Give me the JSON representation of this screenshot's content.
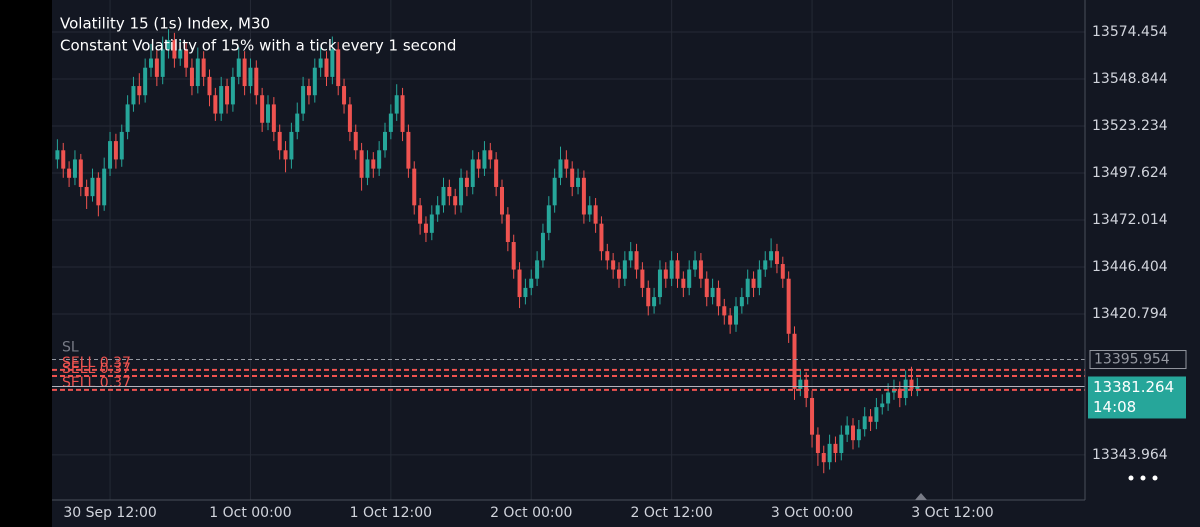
{
  "chart_data": {
    "type": "candlestick",
    "title": "Volatility 15 (1s) Index, M30",
    "subtitle": "Constant Volatility of 15% with a tick every 1 second",
    "categories": [
      null,
      null,
      null,
      null,
      null,
      null,
      null,
      null,
      null,
      "30 Sep 12:00",
      null,
      null,
      null,
      null,
      null,
      null,
      null,
      null,
      null,
      null,
      null,
      null,
      null,
      null,
      null,
      null,
      null,
      null,
      null,
      null,
      null,
      null,
      null,
      "1 Oct 00:00",
      null,
      null,
      null,
      null,
      null,
      null,
      null,
      null,
      null,
      null,
      null,
      null,
      null,
      null,
      null,
      null,
      null,
      null,
      null,
      null,
      null,
      null,
      null,
      "1 Oct 12:00",
      null,
      null,
      null,
      null,
      null,
      null,
      null,
      null,
      null,
      null,
      null,
      null,
      null,
      null,
      null,
      null,
      null,
      null,
      null,
      null,
      null,
      null,
      null,
      "2 Oct 00:00",
      null,
      null,
      null,
      null,
      null,
      null,
      null,
      null,
      null,
      null,
      null,
      null,
      null,
      null,
      null,
      null,
      null,
      null,
      null,
      null,
      null,
      null,
      null,
      "2 Oct 12:00",
      null,
      null,
      null,
      null,
      null,
      null,
      null,
      null,
      null,
      null,
      null,
      null,
      null,
      null,
      null,
      null,
      null,
      null,
      null,
      null,
      null,
      null,
      null,
      "3 Oct 00:00",
      null,
      null,
      null,
      null,
      null,
      null,
      null,
      null,
      null,
      null,
      null,
      null,
      null,
      null,
      null,
      null,
      null,
      null,
      null,
      null,
      null,
      null,
      null,
      "3 Oct 12:00"
    ],
    "open": [
      13505,
      13510,
      13500,
      13495,
      13505,
      13490,
      13485,
      13495,
      13480,
      13500,
      13515,
      13505,
      13520,
      13535,
      13545,
      13540,
      13555,
      13560,
      13550,
      13565,
      13570,
      13560,
      13565,
      13555,
      13545,
      13560,
      13550,
      13540,
      13530,
      13545,
      13535,
      13550,
      13560,
      13545,
      13555,
      13540,
      13525,
      13535,
      13520,
      13510,
      13505,
      13520,
      13530,
      13545,
      13540,
      13555,
      13560,
      13550,
      13565,
      13545,
      13535,
      13520,
      13510,
      13495,
      13505,
      13500,
      13510,
      13520,
      13530,
      13540,
      13520,
      13500,
      13480,
      13470,
      13465,
      13475,
      13480,
      13490,
      13485,
      13480,
      13495,
      13490,
      13505,
      13500,
      13510,
      13505,
      13490,
      13475,
      13460,
      13445,
      13430,
      13435,
      13440,
      13450,
      13465,
      13480,
      13495,
      13505,
      13500,
      13490,
      13495,
      13475,
      13480,
      13470,
      13455,
      13450,
      13445,
      13440,
      13450,
      13455,
      13445,
      13435,
      13425,
      13430,
      13445,
      13440,
      13450,
      13440,
      13435,
      13445,
      13450,
      13440,
      13430,
      13435,
      13425,
      13420,
      13415,
      13425,
      13430,
      13440,
      13435,
      13445,
      13450,
      13455,
      13448,
      13440,
      13410,
      13380,
      13385,
      13375,
      13355,
      13345,
      13340,
      13350,
      13345,
      13355,
      13360,
      13352,
      13358,
      13365,
      13362,
      13370,
      13372,
      13378,
      13380,
      13375,
      13385,
      13380,
      null,
      null,
      null,
      null,
      null,
      null
    ],
    "high": [
      13516,
      13514,
      13504,
      13510,
      13508,
      13494,
      13500,
      13498,
      13506,
      13520,
      13519,
      13524,
      13540,
      13550,
      13552,
      13560,
      13568,
      13565,
      13572,
      13576,
      13574,
      13570,
      13569,
      13560,
      13566,
      13564,
      13554,
      13544,
      13550,
      13549,
      13555,
      13566,
      13564,
      13560,
      13559,
      13544,
      13540,
      13539,
      13524,
      13515,
      13525,
      13536,
      13550,
      13549,
      13560,
      13566,
      13564,
      13572,
      13569,
      13549,
      13539,
      13524,
      13514,
      13510,
      13509,
      13515,
      13525,
      13535,
      13546,
      13544,
      13524,
      13504,
      13484,
      13474,
      13480,
      13485,
      13495,
      13494,
      13489,
      13500,
      13499,
      13510,
      13509,
      13515,
      13514,
      13509,
      13494,
      13479,
      13464,
      13449,
      13440,
      13445,
      13455,
      13470,
      13485,
      13500,
      13512,
      13510,
      13504,
      13500,
      13499,
      13485,
      13484,
      13474,
      13459,
      13454,
      13449,
      13455,
      13460,
      13459,
      13449,
      13439,
      13435,
      13450,
      13449,
      13455,
      13454,
      13444,
      13450,
      13455,
      13454,
      13444,
      13440,
      13439,
      13429,
      13424,
      13430,
      13435,
      13445,
      13444,
      13450,
      13455,
      13462,
      13459,
      13452,
      13444,
      13414,
      13390,
      13389,
      13379,
      13359,
      13349,
      13355,
      13354,
      13360,
      13365,
      13364,
      13363,
      13370,
      13369,
      13375,
      13377,
      13383,
      13385,
      13384,
      13390,
      13392,
      13386,
      null,
      null,
      null,
      null,
      null,
      null
    ],
    "low": [
      13500,
      13495,
      13490,
      13491,
      13485,
      13478,
      13482,
      13474,
      13477,
      13496,
      13500,
      13501,
      13516,
      13531,
      13535,
      13536,
      13550,
      13545,
      13546,
      13560,
      13555,
      13556,
      13550,
      13540,
      13541,
      13545,
      13534,
      13526,
      13526,
      13530,
      13531,
      13546,
      13540,
      13541,
      13535,
      13520,
      13521,
      13515,
      13505,
      13498,
      13500,
      13516,
      13526,
      13535,
      13536,
      13550,
      13545,
      13546,
      13540,
      13530,
      13515,
      13505,
      13488,
      13491,
      13495,
      13496,
      13506,
      13516,
      13526,
      13515,
      13495,
      13475,
      13464,
      13460,
      13461,
      13471,
      13476,
      13480,
      13475,
      13476,
      13485,
      13486,
      13495,
      13496,
      13500,
      13485,
      13470,
      13455,
      13440,
      13424,
      13426,
      13431,
      13436,
      13446,
      13461,
      13476,
      13491,
      13495,
      13485,
      13486,
      13470,
      13471,
      13465,
      13450,
      13445,
      13440,
      13435,
      13436,
      13446,
      13440,
      13430,
      13420,
      13421,
      13426,
      13435,
      13436,
      13435,
      13430,
      13431,
      13441,
      13435,
      13425,
      13426,
      13420,
      13415,
      13410,
      13411,
      13421,
      13426,
      13430,
      13431,
      13441,
      13446,
      13443,
      13435,
      13405,
      13374,
      13376,
      13370,
      13348,
      13338,
      13334,
      13336,
      13340,
      13341,
      13351,
      13347,
      13348,
      13354,
      13357,
      13358,
      13366,
      13368,
      13374,
      13370,
      13371,
      13376,
      13376,
      null,
      null,
      null,
      null,
      null,
      null
    ],
    "close": [
      13510,
      13500,
      13495,
      13505,
      13490,
      13485,
      13495,
      13480,
      13500,
      13515,
      13505,
      13520,
      13535,
      13545,
      13540,
      13555,
      13560,
      13550,
      13565,
      13570,
      13560,
      13565,
      13555,
      13545,
      13560,
      13550,
      13540,
      13530,
      13545,
      13535,
      13550,
      13560,
      13545,
      13555,
      13540,
      13525,
      13535,
      13520,
      13510,
      13505,
      13520,
      13530,
      13545,
      13540,
      13555,
      13560,
      13550,
      13565,
      13545,
      13535,
      13520,
      13510,
      13495,
      13505,
      13500,
      13510,
      13520,
      13530,
      13540,
      13520,
      13500,
      13480,
      13470,
      13465,
      13475,
      13480,
      13490,
      13485,
      13480,
      13495,
      13490,
      13505,
      13500,
      13510,
      13505,
      13490,
      13475,
      13460,
      13445,
      13430,
      13435,
      13440,
      13450,
      13465,
      13480,
      13495,
      13505,
      13500,
      13490,
      13495,
      13475,
      13480,
      13470,
      13455,
      13450,
      13445,
      13440,
      13450,
      13455,
      13445,
      13435,
      13425,
      13430,
      13445,
      13440,
      13450,
      13440,
      13435,
      13445,
      13450,
      13440,
      13430,
      13435,
      13425,
      13420,
      13415,
      13425,
      13430,
      13440,
      13435,
      13445,
      13450,
      13455,
      13448,
      13440,
      13410,
      13380,
      13385,
      13375,
      13355,
      13345,
      13340,
      13350,
      13345,
      13355,
      13360,
      13352,
      13358,
      13365,
      13362,
      13370,
      13372,
      13378,
      13380,
      13375,
      13385,
      13380,
      13381.264,
      null,
      null,
      null,
      null,
      null,
      null
    ],
    "up_color": "#26a69a",
    "down_color": "#ef5350",
    "ylim": [
      13319.4,
      13591.9
    ],
    "yticks": [
      13574.454,
      13548.844,
      13523.234,
      13497.624,
      13472.014,
      13446.404,
      13420.794,
      13343.964
    ],
    "grid": true,
    "stop_loss": {
      "label": "SL",
      "price": 13395.954
    },
    "orders": [
      {
        "label": "SELL 0.37",
        "price": 13390.3
      },
      {
        "label": "SELL 0.37",
        "price": 13387.0
      },
      {
        "label": "SELL 0.37",
        "price": 13379.4
      }
    ],
    "countdown": "14:08"
  }
}
